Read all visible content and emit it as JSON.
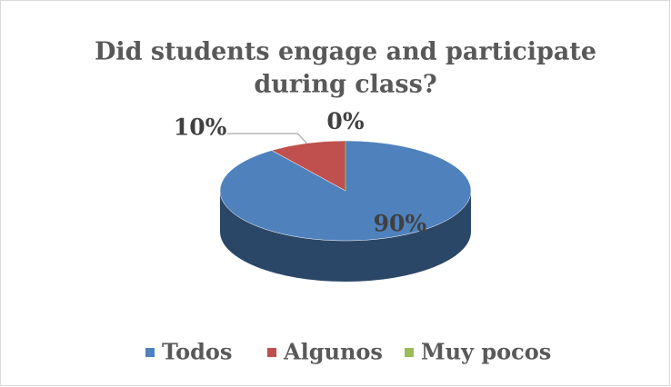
{
  "chart_data": {
    "type": "pie",
    "title": [
      "Did students engage and participate",
      "during class?"
    ],
    "categories": [
      "Todos",
      "Algunos",
      "Muy pocos"
    ],
    "values": [
      90,
      10,
      0
    ],
    "value_labels": [
      "90%",
      "10%",
      "0%"
    ],
    "colors": [
      "#4f81bd",
      "#c0504d",
      "#9bbb59"
    ],
    "legend": "bottom"
  }
}
